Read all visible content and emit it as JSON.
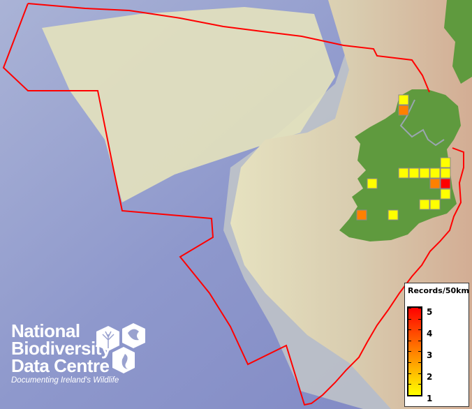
{
  "map": {
    "boundary_color": "#ff0000",
    "land_color": "#5f9a3e",
    "border_color": "#9aa5b0",
    "grid_squares": [
      {
        "col": "571",
        "row": "136",
        "records": 1
      },
      {
        "col": "571",
        "row": "151",
        "records": 3
      },
      {
        "col": "631",
        "row": "226",
        "records": 1
      },
      {
        "col": "571",
        "row": "241",
        "records": 1
      },
      {
        "col": "586",
        "row": "241",
        "records": 1
      },
      {
        "col": "601",
        "row": "241",
        "records": 1
      },
      {
        "col": "616",
        "row": "241",
        "records": 1
      },
      {
        "col": "631",
        "row": "241",
        "records": 1
      },
      {
        "col": "526",
        "row": "256",
        "records": 1
      },
      {
        "col": "616",
        "row": "256",
        "records": 3
      },
      {
        "col": "631",
        "row": "256",
        "records": 5
      },
      {
        "col": "631",
        "row": "271",
        "records": 1
      },
      {
        "col": "601",
        "row": "286",
        "records": 1
      },
      {
        "col": "616",
        "row": "286",
        "records": 1
      },
      {
        "col": "511",
        "row": "301",
        "records": 3
      },
      {
        "col": "556",
        "row": "301",
        "records": 1
      }
    ]
  },
  "legend": {
    "title": "Records/50km",
    "ticks": [
      "5",
      "4",
      "3",
      "2",
      "1"
    ],
    "colors": {
      "min": "#ffff00",
      "mid": "#ff8000",
      "max": "#ff0000"
    }
  },
  "logo": {
    "lines": [
      "National",
      "Biodiversity",
      "Data Centre"
    ],
    "tagline": "Documenting Ireland's Wildlife"
  }
}
